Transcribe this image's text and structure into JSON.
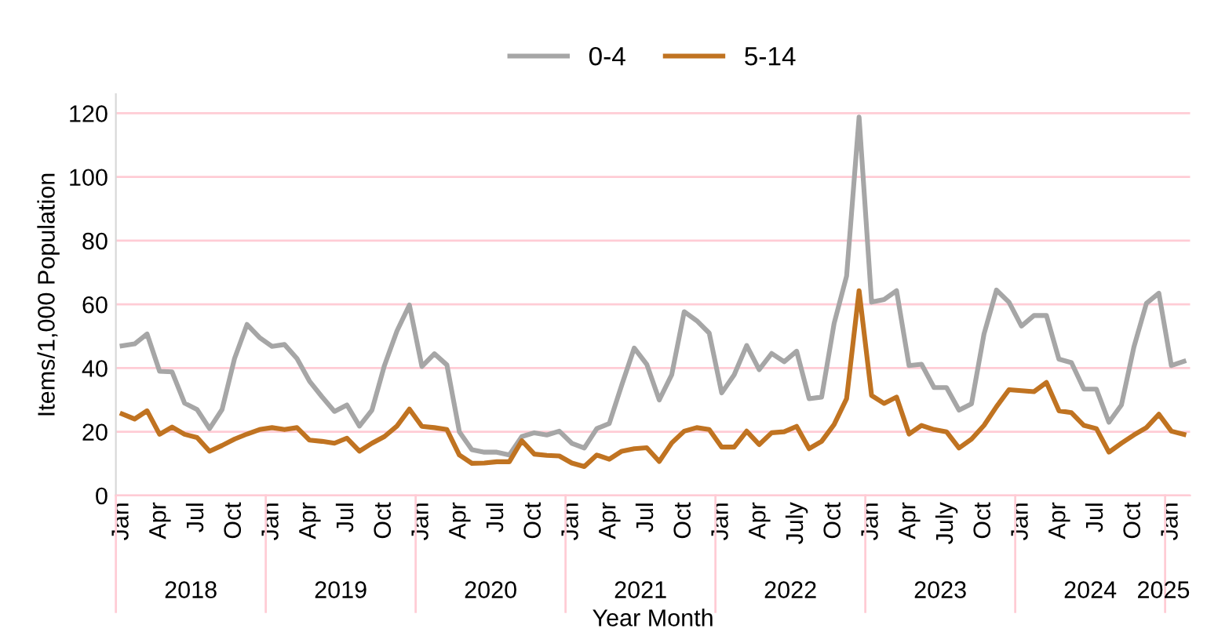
{
  "chart_data": {
    "type": "line",
    "xlabel": "Year Month",
    "ylabel": "Items/1,000 Population",
    "categories": [
      "Jan",
      null,
      null,
      "Apr",
      null,
      null,
      "Jul",
      null,
      null,
      "Oct",
      null,
      null,
      "Jan",
      null,
      null,
      "Apr",
      null,
      null,
      "Jul",
      null,
      null,
      "Oct",
      null,
      null,
      "Jan",
      null,
      null,
      "Apr",
      null,
      null,
      "Jul",
      null,
      null,
      "Oct",
      null,
      null,
      "Jan",
      null,
      null,
      "Apr",
      null,
      null,
      "Jul",
      null,
      null,
      "Oct",
      null,
      null,
      "Jan",
      null,
      null,
      "Apr",
      null,
      null,
      "July",
      null,
      null,
      "Oct",
      null,
      null,
      "Jan",
      null,
      null,
      "Apr",
      null,
      null,
      "July",
      null,
      null,
      "Oct",
      null,
      null,
      "Jan",
      null,
      null,
      "Apr",
      null,
      null,
      "Jul",
      null,
      null,
      "Oct",
      null,
      null,
      "Jan",
      null
    ],
    "annotations": [
      "2018",
      "2019",
      "2020",
      "2021",
      "2022",
      "2023",
      "2024",
      "2025"
    ],
    "series": [
      {
        "name": "0-4",
        "color": "#a6a6a6",
        "values": [
          47,
          47.6,
          50.7,
          39,
          38.8,
          29,
          27,
          21,
          27,
          43,
          53.7,
          49.6,
          46.8,
          47.4,
          43,
          35.9,
          31,
          26.4,
          28.4,
          21.8,
          26.8,
          40.8,
          51.6,
          59.8,
          40.5,
          44.5,
          41,
          20,
          14.4,
          13.6,
          13.6,
          12.7,
          18.5,
          19.7,
          19,
          20.2,
          16.4,
          14.9,
          21,
          22.6,
          34.7,
          46.3,
          41.2,
          30,
          37.9,
          57.7,
          54.9,
          51,
          32.2,
          37.9,
          47.1,
          39.5,
          44.6,
          42,
          45.3,
          30.4,
          30.9,
          54,
          68.9,
          118.8,
          60.7,
          61.5,
          64.3,
          40.8,
          41.2,
          33.9,
          33.9,
          26.8,
          28.8,
          50.7,
          64.5,
          60.7,
          53.2,
          56.5,
          56.5,
          42.8,
          41.7,
          33.4,
          33.4,
          23,
          28.4,
          46.6,
          60.3,
          63.5,
          40.8,
          42.1
        ]
      },
      {
        "name": "5-14",
        "color": "#c07321",
        "values": [
          25.6,
          24,
          26.6,
          19.2,
          21.5,
          19.2,
          18.2,
          13.9,
          15.7,
          17.7,
          19.3,
          20.7,
          21.3,
          20.7,
          21.3,
          17.4,
          17,
          16.4,
          18,
          13.9,
          16.4,
          18.5,
          21.8,
          27.1,
          21.7,
          21.3,
          20.7,
          12.7,
          10.1,
          10.2,
          10.6,
          10.6,
          17.2,
          13,
          12.6,
          12.4,
          10.2,
          9.1,
          12.7,
          11.4,
          13.9,
          14.7,
          15,
          10.7,
          16.5,
          20.2,
          21.3,
          20.7,
          15.2,
          15.2,
          20.2,
          16,
          19.7,
          20,
          21.7,
          14.7,
          17,
          22.3,
          30.4,
          64.3,
          31.4,
          28.9,
          30.9,
          19.3,
          22,
          20.7,
          20,
          14.9,
          17.7,
          22,
          27.9,
          33.2,
          32.9,
          32.6,
          35.5,
          26.6,
          26,
          22,
          21,
          13.6,
          16.4,
          19,
          21.3,
          25.5,
          20.2,
          19.2
        ]
      }
    ],
    "ylim": [
      0,
      126
    ],
    "yticks": [
      0,
      20,
      40,
      60,
      80,
      100,
      120
    ],
    "grid": "y",
    "legend": "top",
    "marker": "none",
    "line_style": "solid"
  }
}
